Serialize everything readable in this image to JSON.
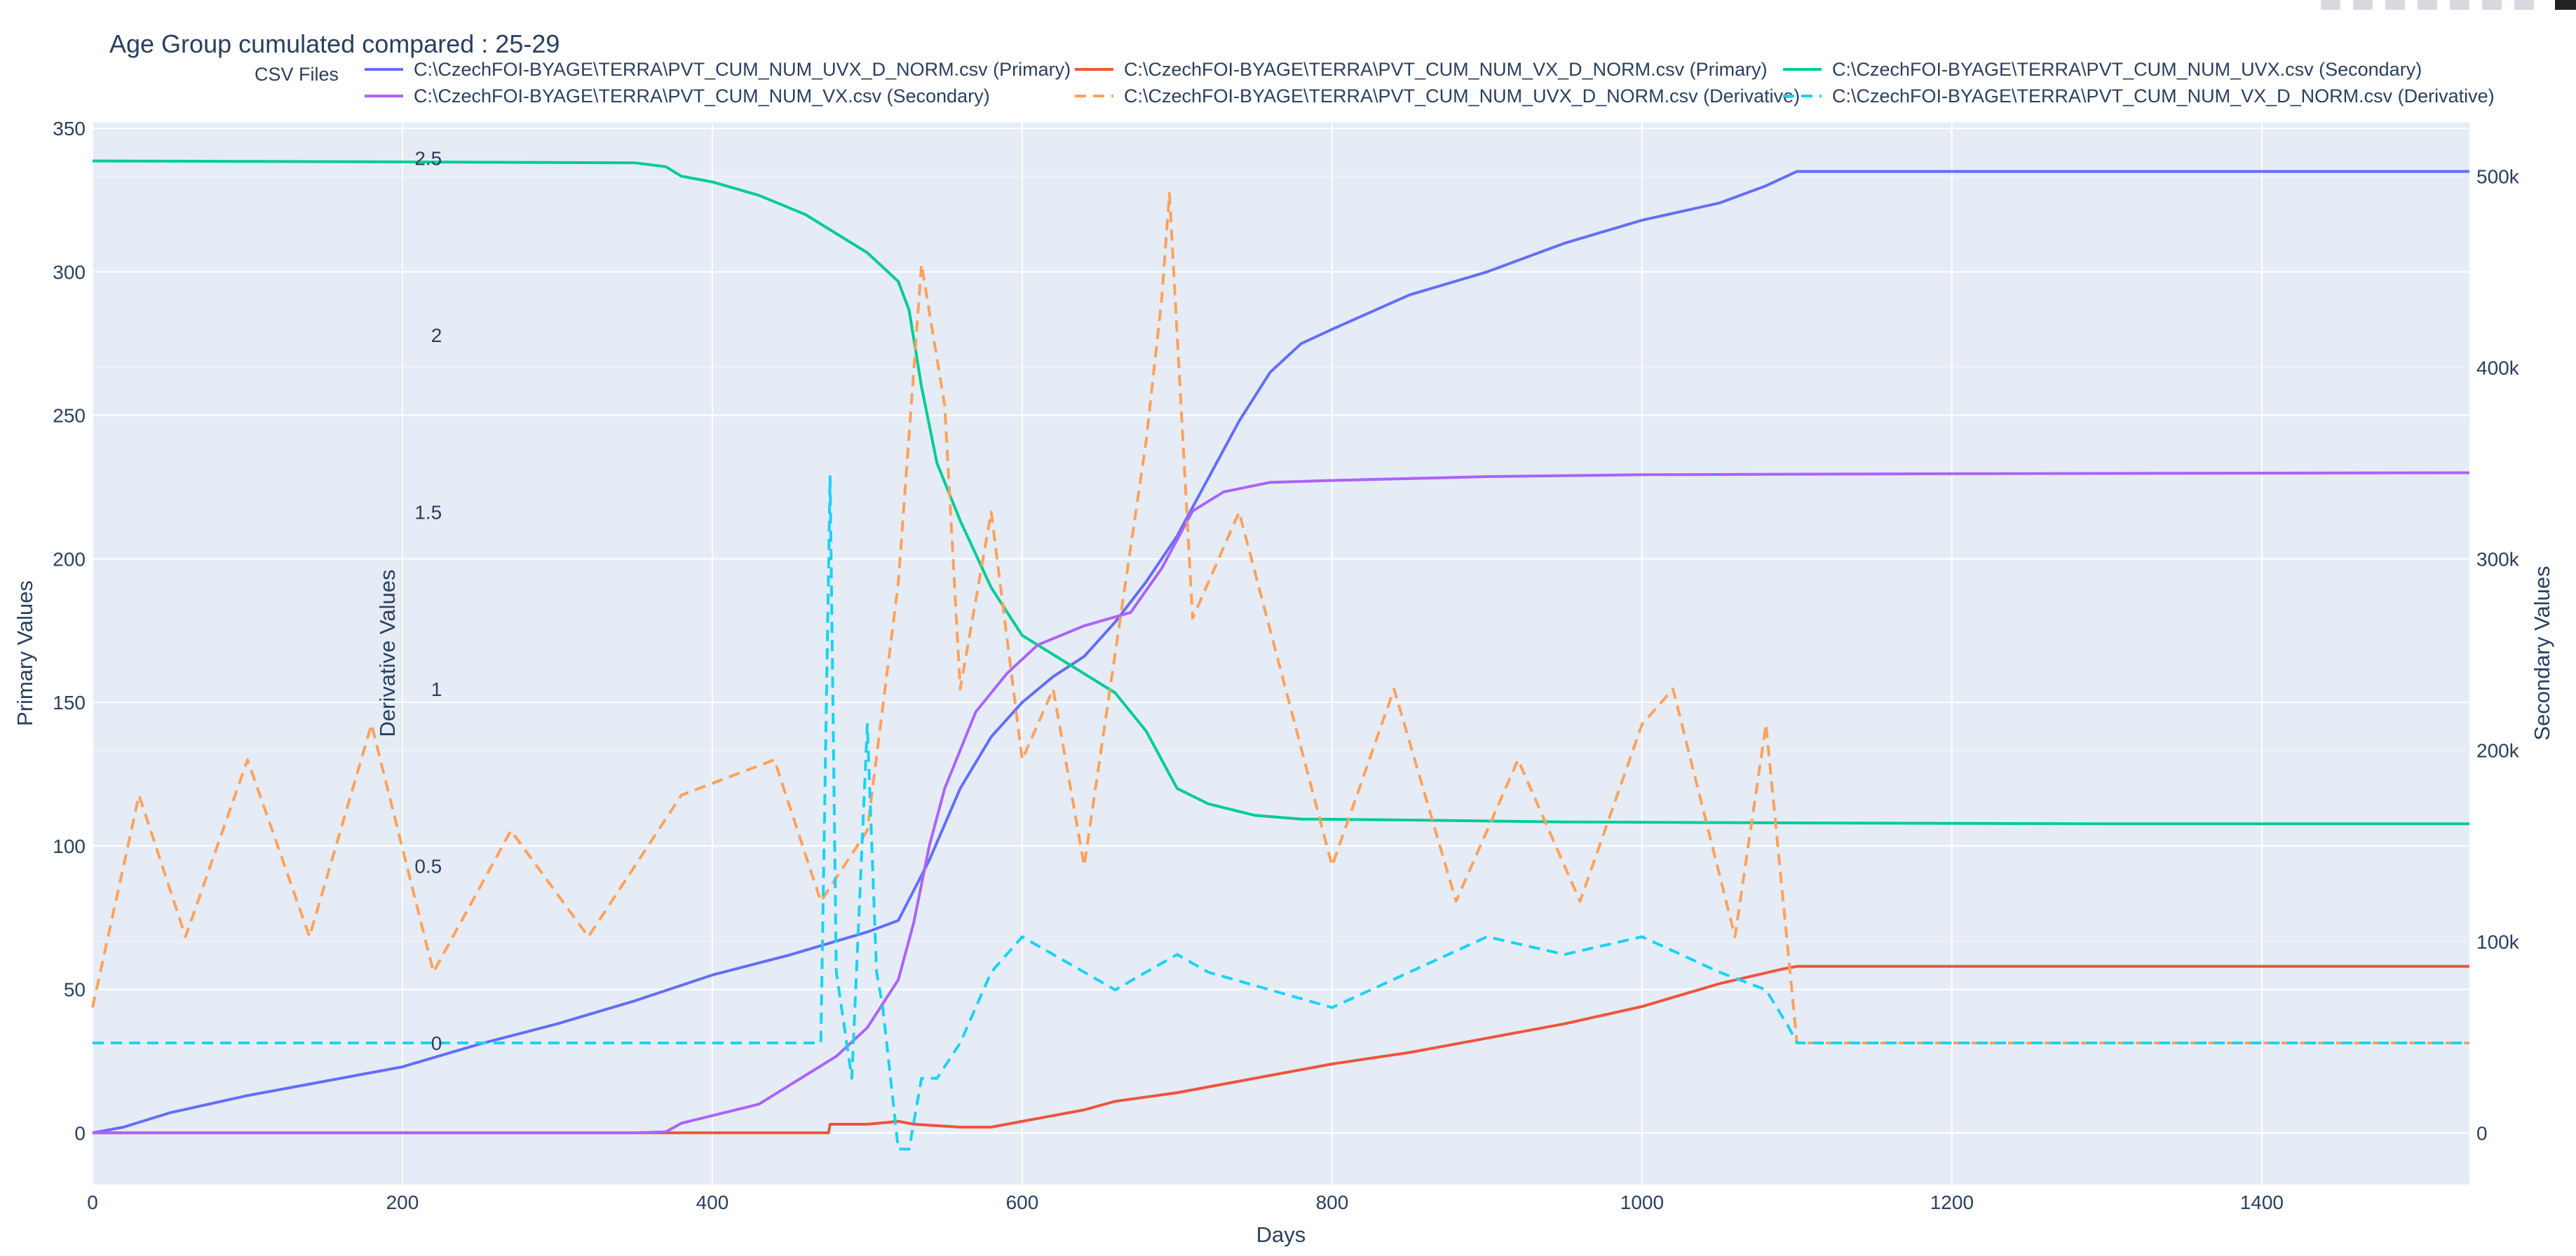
{
  "chart_data": {
    "type": "line",
    "title": "Age Group cumulated compared : 25-29",
    "legend_title": "CSV Files",
    "legend_position": "top",
    "grid": true,
    "xaxis": {
      "label": "Days",
      "range": [
        0,
        1534
      ],
      "ticks": [
        0,
        200,
        400,
        600,
        800,
        1000,
        1200,
        1400
      ]
    },
    "yaxis_primary": {
      "label": "Primary Values",
      "range": [
        -18,
        352
      ],
      "ticks": [
        0,
        50,
        100,
        150,
        200,
        250,
        300,
        350
      ]
    },
    "yaxis_derivative": {
      "label": "Derivative Values",
      "range": [
        -0.4,
        2.6
      ],
      "ticks": [
        0,
        0.5,
        1,
        1.5,
        2,
        2.5
      ]
    },
    "yaxis_secondary": {
      "label": "Secondary Values",
      "range": [
        -27000,
        528000
      ],
      "ticks": [
        0,
        100000,
        200000,
        300000,
        400000,
        500000
      ],
      "tick_labels": [
        "0",
        "100k",
        "200k",
        "300k",
        "400k",
        "500k"
      ]
    },
    "series": [
      {
        "name": "C:\\CzechFOI-BYAGE\\TERRA\\PVT_CUM_NUM_UVX_D_NORM.csv (Primary)",
        "axis": "primary",
        "color": "#636efa",
        "dash": "solid",
        "x": [
          0,
          20,
          50,
          100,
          150,
          200,
          250,
          300,
          350,
          400,
          450,
          500,
          520,
          540,
          560,
          580,
          600,
          620,
          640,
          660,
          680,
          700,
          720,
          740,
          760,
          780,
          800,
          850,
          900,
          950,
          1000,
          1050,
          1080,
          1100,
          1200,
          1300,
          1400,
          1534
        ],
        "y": [
          0,
          2,
          7,
          13,
          18,
          23,
          31,
          38,
          46,
          55,
          62,
          70,
          74,
          95,
          120,
          138,
          150,
          159,
          166,
          178,
          192,
          208,
          228,
          248,
          265,
          275,
          280,
          292,
          300,
          310,
          318,
          324,
          330,
          335,
          335,
          335,
          335,
          335
        ]
      },
      {
        "name": "C:\\CzechFOI-BYAGE\\TERRA\\PVT_CUM_NUM_VX_D_NORM.csv (Primary)",
        "axis": "primary",
        "color": "#ef553b",
        "dash": "solid",
        "x": [
          0,
          470,
          475,
          476,
          500,
          520,
          530,
          560,
          580,
          600,
          620,
          640,
          660,
          700,
          760,
          800,
          850,
          900,
          950,
          1000,
          1050,
          1090,
          1100,
          1200,
          1300,
          1400,
          1534
        ],
        "y": [
          0,
          0,
          0,
          3,
          3,
          4,
          3,
          2,
          2,
          4,
          6,
          8,
          11,
          14,
          20,
          24,
          28,
          33,
          38,
          44,
          52,
          57,
          58,
          58,
          58,
          58,
          58
        ]
      },
      {
        "name": "C:\\CzechFOI-BYAGE\\TERRA\\PVT_CUM_NUM_UVX.csv (Secondary)",
        "axis": "secondary",
        "color": "#00cc96",
        "dash": "solid",
        "x": [
          0,
          200,
          350,
          370,
          380,
          400,
          430,
          460,
          500,
          520,
          527,
          535,
          545,
          560,
          580,
          600,
          630,
          660,
          680,
          700,
          720,
          750,
          780,
          850,
          950,
          1100,
          1300,
          1534
        ],
        "y": [
          508000,
          507500,
          507000,
          505000,
          500000,
          497000,
          490000,
          480000,
          460000,
          445000,
          430000,
          390000,
          350000,
          320000,
          285000,
          260000,
          245000,
          230000,
          210000,
          180000,
          172000,
          166000,
          164000,
          163500,
          162500,
          162000,
          161500,
          161500
        ]
      },
      {
        "name": "C:\\CzechFOI-BYAGE\\TERRA\\PVT_CUM_NUM_VX.csv (Secondary)",
        "axis": "secondary",
        "color": "#ab63fa",
        "dash": "solid",
        "x": [
          0,
          350,
          370,
          380,
          400,
          430,
          450,
          480,
          500,
          520,
          530,
          540,
          550,
          570,
          590,
          610,
          640,
          670,
          690,
          710,
          730,
          760,
          800,
          900,
          1000,
          1200,
          1534
        ],
        "y": [
          0,
          0,
          500,
          5000,
          9000,
          15000,
          25000,
          40000,
          55000,
          80000,
          110000,
          150000,
          180000,
          220000,
          240000,
          255000,
          265000,
          272000,
          295000,
          325000,
          335000,
          340000,
          341000,
          343000,
          344000,
          344500,
          345000
        ]
      },
      {
        "name": "C:\\CzechFOI-BYAGE\\TERRA\\PVT_CUM_NUM_UVX_D_NORM.csv (Derivative)",
        "axis": "derivative",
        "color": "#ffa15a",
        "dash": "dash",
        "x": [
          0,
          30,
          60,
          100,
          140,
          180,
          220,
          270,
          320,
          380,
          440,
          470,
          500,
          520,
          535,
          550,
          560,
          580,
          600,
          620,
          640,
          660,
          680,
          690,
          695,
          710,
          740,
          770,
          800,
          840,
          880,
          920,
          960,
          1000,
          1020,
          1060,
          1080,
          1100,
          1534
        ],
        "y": [
          0.1,
          0.7,
          0.3,
          0.8,
          0.3,
          0.9,
          0.2,
          0.6,
          0.3,
          0.7,
          0.8,
          0.4,
          0.6,
          1.3,
          2.2,
          1.8,
          1.0,
          1.5,
          0.8,
          1.0,
          0.5,
          1.1,
          1.7,
          2.1,
          2.4,
          1.2,
          1.5,
          1.0,
          0.5,
          1.0,
          0.4,
          0.8,
          0.4,
          0.9,
          1.0,
          0.3,
          0.9,
          0.0,
          0.0
        ]
      },
      {
        "name": "C:\\CzechFOI-BYAGE\\TERRA\\PVT_CUM_NUM_VX_D_NORM.csv (Derivative)",
        "axis": "derivative",
        "color": "#19d3f3",
        "dash": "dash",
        "x": [
          0,
          470,
          476,
          480,
          490,
          500,
          506,
          510,
          520,
          527,
          535,
          545,
          560,
          570,
          580,
          600,
          620,
          640,
          660,
          680,
          700,
          720,
          760,
          800,
          850,
          900,
          950,
          1000,
          1050,
          1080,
          1094,
          1100,
          1534
        ],
        "y": [
          0,
          0,
          1.6,
          0.2,
          -0.1,
          0.9,
          0.2,
          0.1,
          -0.3,
          -0.3,
          -0.1,
          -0.1,
          0,
          0.1,
          0.2,
          0.3,
          0.25,
          0.2,
          0.15,
          0.2,
          0.25,
          0.2,
          0.15,
          0.1,
          0.2,
          0.3,
          0.25,
          0.3,
          0.2,
          0.15,
          0.05,
          0,
          0
        ]
      }
    ]
  }
}
